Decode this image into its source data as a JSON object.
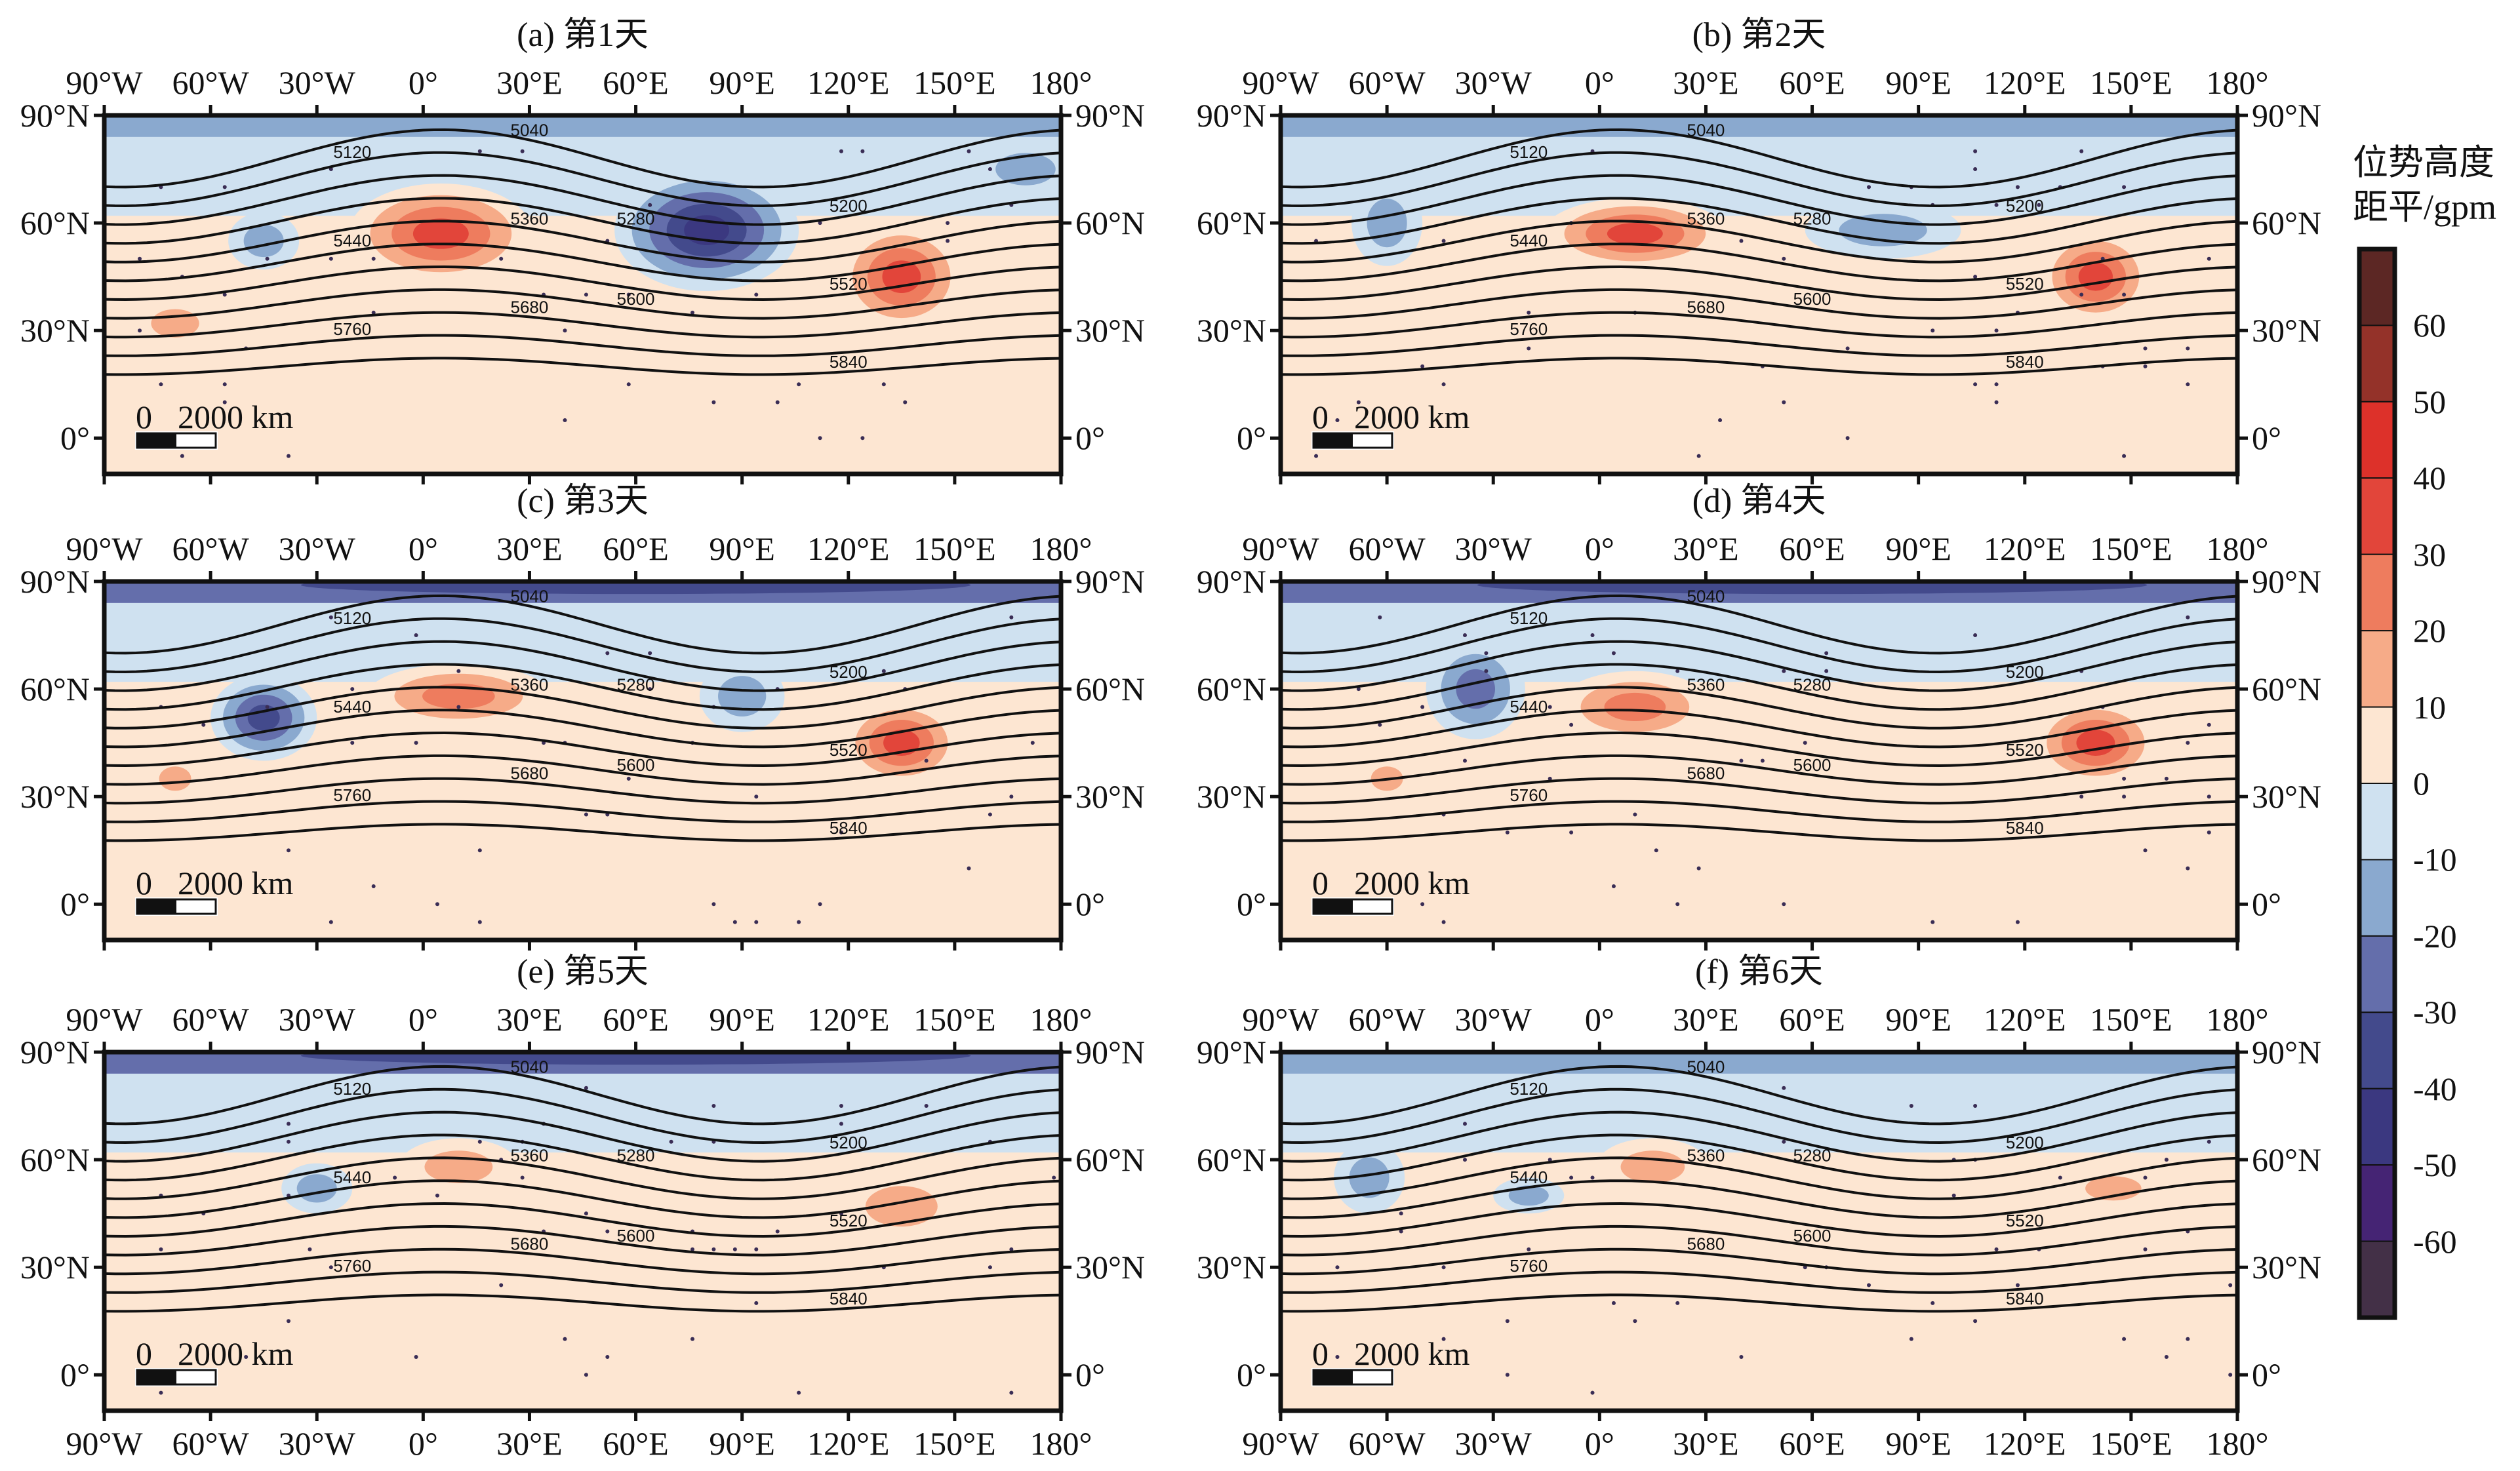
{
  "figure": {
    "colorbar": {
      "title_line1": "位势高度",
      "title_line2": "距平/gpm",
      "tick_labels": [
        "60",
        "50",
        "40",
        "30",
        "20",
        "10",
        "0",
        "-10",
        "-20",
        "-30",
        "-40",
        "-50",
        "-60"
      ],
      "levels": [
        -70,
        -60,
        -50,
        -40,
        -30,
        -20,
        -10,
        0,
        10,
        20,
        30,
        40,
        50,
        60,
        70
      ],
      "colors": [
        "#433047",
        "#452474",
        "#3b3880",
        "#434a8c",
        "#646eab",
        "#8aa9cf",
        "#cfe1f0",
        "#fde6d2",
        "#f6ab88",
        "#ee7c5e",
        "#e2453a",
        "#dd312a",
        "#943229",
        "#5c2724"
      ]
    },
    "lon_labels": [
      "90°W",
      "60°W",
      "30°W",
      "0°",
      "30°E",
      "60°E",
      "90°E",
      "120°E",
      "150°E",
      "180°"
    ],
    "lon_values": [
      -90,
      -60,
      -30,
      0,
      30,
      60,
      90,
      120,
      150,
      180
    ],
    "lat_labels": [
      "90°N",
      "60°N",
      "30°N",
      "0°"
    ],
    "lat_values": [
      90,
      60,
      30,
      0
    ],
    "scale_bar": {
      "zero": "0",
      "distance": "2000 km"
    },
    "contour_levels": [
      5040,
      5120,
      5200,
      5280,
      5360,
      5440,
      5520,
      5600,
      5680,
      5760,
      5840
    ],
    "contour_labels": [
      "5040",
      "5120",
      "5200",
      "5280",
      "5360",
      "5440",
      "5520",
      "5600",
      "5680",
      "5760",
      "5840"
    ],
    "panels": [
      {
        "title": "(a) 第1天",
        "polar_anomaly": -20,
        "anomalies": [
          [
            5,
            57,
            40,
            26,
            14
          ],
          [
            80,
            58,
            -50,
            26,
            17
          ],
          [
            135,
            45,
            40,
            18,
            15
          ],
          [
            -70,
            32,
            20,
            12,
            7
          ],
          [
            -45,
            55,
            -20,
            10,
            8
          ],
          [
            170,
            75,
            -20,
            15,
            8
          ]
        ]
      },
      {
        "title": "(b) 第2天",
        "polar_anomaly": -20,
        "anomalies": [
          [
            10,
            57,
            40,
            26,
            10
          ],
          [
            80,
            58,
            -20,
            22,
            8
          ],
          [
            140,
            45,
            40,
            16,
            13
          ],
          [
            -60,
            60,
            -20,
            10,
            12
          ]
        ]
      },
      {
        "title": "(c) 第3天",
        "polar_anomaly": -30,
        "anomalies": [
          [
            10,
            58,
            30,
            26,
            9
          ],
          [
            -45,
            52,
            -40,
            15,
            12
          ],
          [
            135,
            45,
            40,
            17,
            12
          ],
          [
            90,
            58,
            -20,
            12,
            10
          ],
          [
            -70,
            35,
            20,
            8,
            6
          ]
        ]
      },
      {
        "title": "(d) 第4天",
        "polar_anomaly": -30,
        "anomalies": [
          [
            10,
            55,
            30,
            22,
            10
          ],
          [
            -35,
            60,
            -30,
            14,
            14
          ],
          [
            140,
            45,
            40,
            18,
            12
          ],
          [
            -60,
            35,
            20,
            8,
            6
          ]
        ]
      },
      {
        "title": "(e) 第5天",
        "polar_anomaly": -30,
        "anomalies": [
          [
            10,
            58,
            20,
            17,
            8
          ],
          [
            -30,
            52,
            -20,
            10,
            7
          ],
          [
            135,
            47,
            20,
            18,
            10
          ],
          [
            -70,
            40,
            10,
            8,
            10
          ]
        ]
      },
      {
        "title": "(f) 第6天",
        "polar_anomaly": -20,
        "anomalies": [
          [
            15,
            58,
            20,
            16,
            8
          ],
          [
            -65,
            55,
            -20,
            10,
            10
          ],
          [
            -20,
            50,
            -20,
            10,
            5
          ],
          [
            145,
            52,
            20,
            14,
            6
          ]
        ]
      }
    ]
  }
}
